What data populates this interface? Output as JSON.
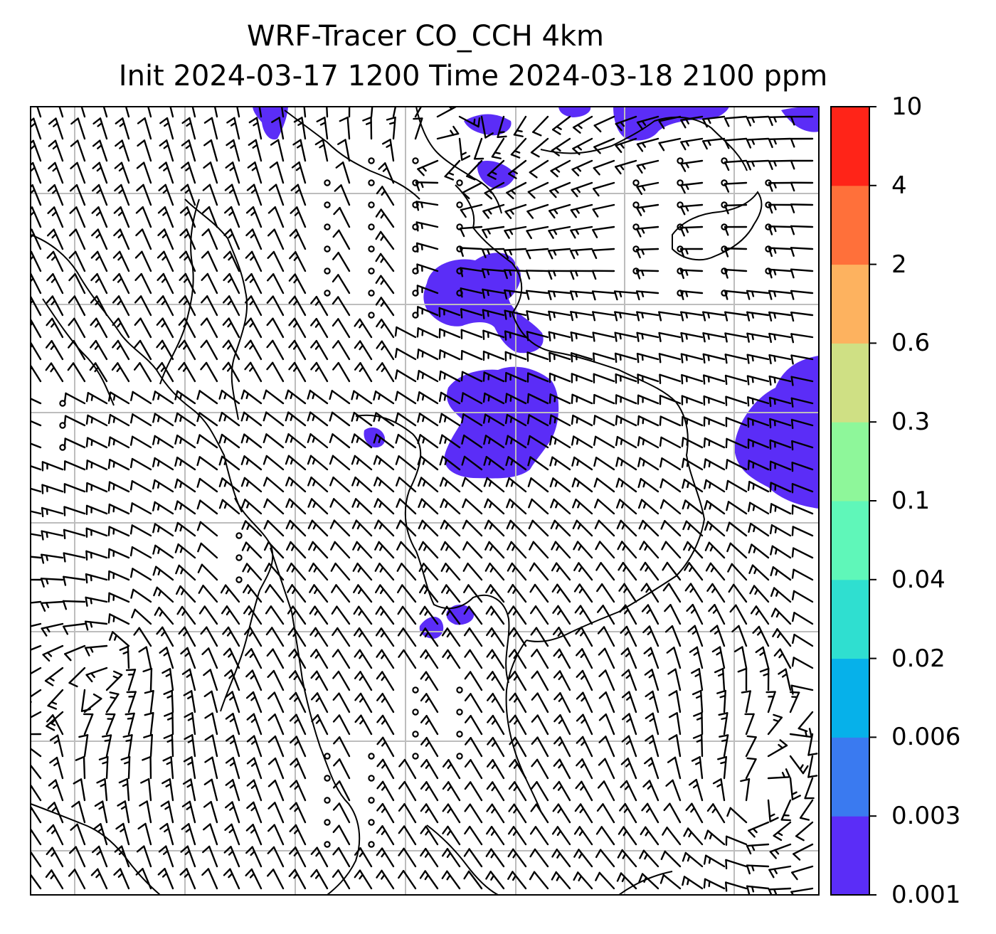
{
  "title": {
    "line1": "WRF-Tracer CO_CCH 4km",
    "line2": "Init 2024-03-17 1200 Time 2024-03-18 2100 ppm"
  },
  "colorbar": {
    "levels": [
      "0.001",
      "0.003",
      "0.006",
      "0.02",
      "0.04",
      "0.1",
      "0.3",
      "0.6",
      "2",
      "4",
      "10"
    ],
    "colors": [
      "#5b2df7",
      "#3a7af0",
      "#06b1ea",
      "#2fdfd0",
      "#5ff7b9",
      "#8ef79a",
      "#cfe084",
      "#fdb25f",
      "#ff703a",
      "#ff2418"
    ]
  },
  "map": {
    "grid": "on",
    "vector_field": "wind barbs",
    "tracer_fill_color": "#5b2df7"
  }
}
